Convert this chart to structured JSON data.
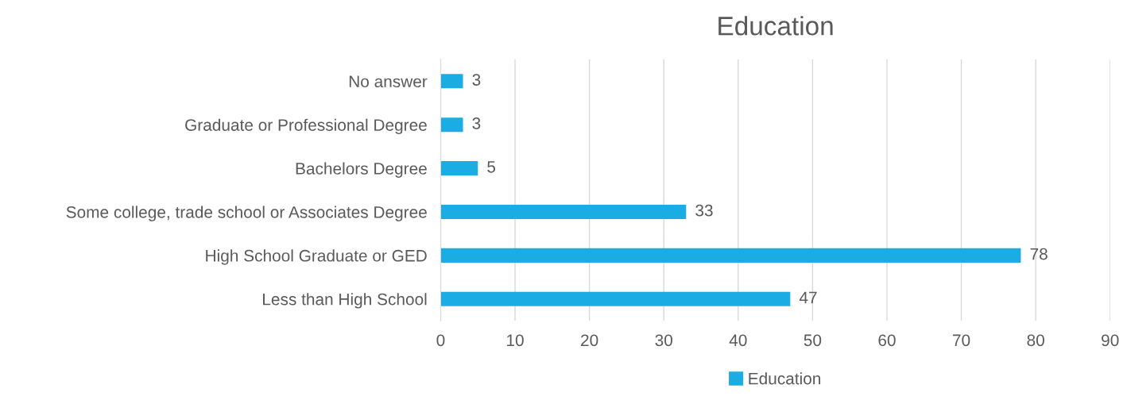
{
  "chart_data": {
    "type": "bar",
    "orientation": "horizontal",
    "title": "Education",
    "categories": [
      "No answer",
      "Graduate or Professional Degree",
      "Bachelors Degree",
      "Some college, trade school or Associates Degree",
      "High School Graduate or GED",
      "Less than High School"
    ],
    "series": [
      {
        "name": "Education",
        "color": "#1aace3",
        "values": [
          3,
          3,
          5,
          33,
          78,
          47
        ]
      }
    ],
    "xlim": [
      0,
      90
    ],
    "xticks": [
      0,
      10,
      20,
      30,
      40,
      50,
      60,
      70,
      80,
      90
    ],
    "grid": "x",
    "legend": "bottom",
    "data_labels": true
  }
}
